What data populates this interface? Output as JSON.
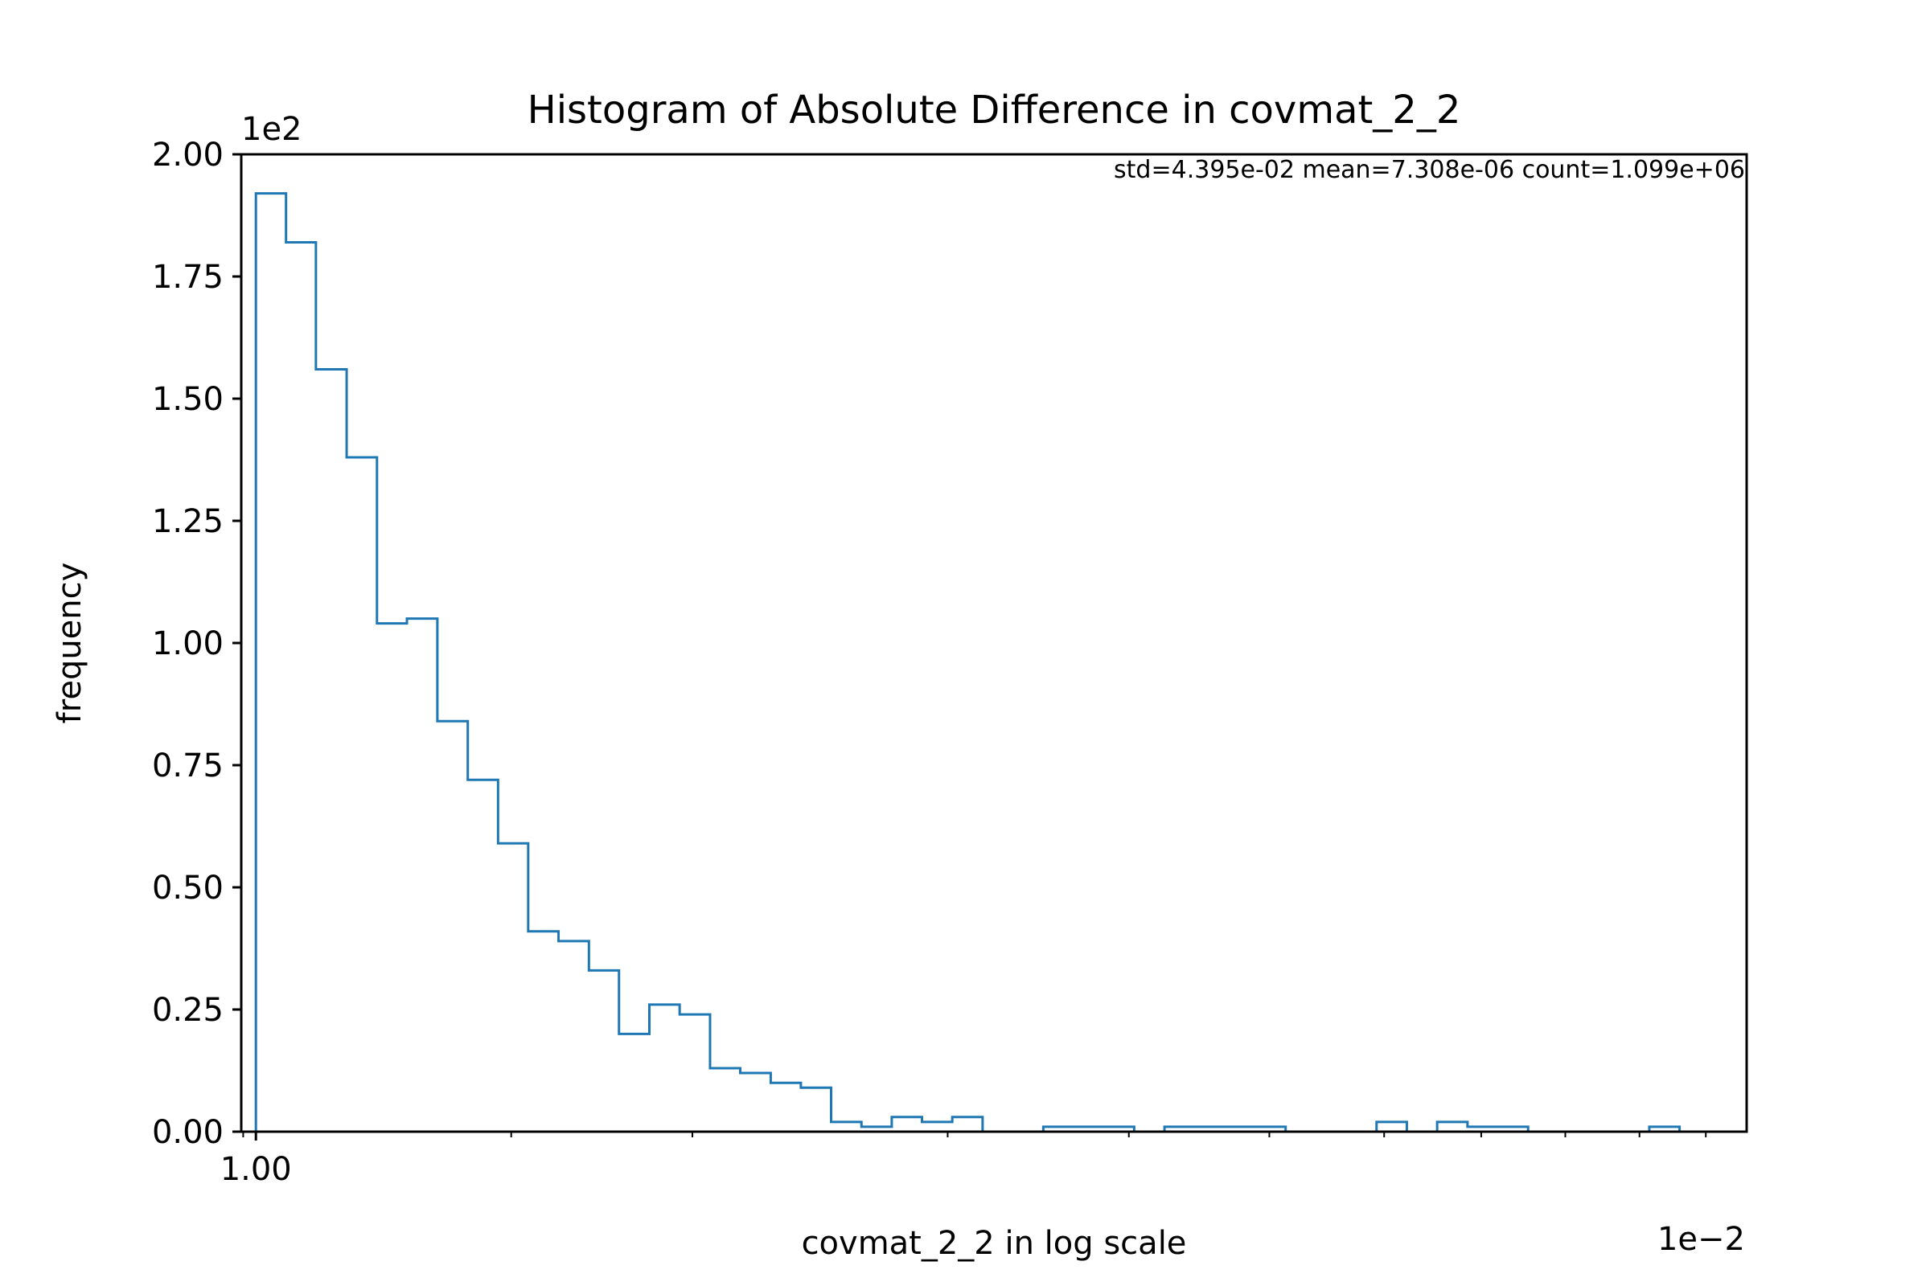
{
  "chart_data": {
    "type": "histogram",
    "title": "Histogram of Absolute Difference in covmat_2_2",
    "annotation": "std=4.395e-02 mean=7.308e-06 count=1.099e+06",
    "xlabel": "covmat_2_2 in log scale",
    "ylabel": "frequency",
    "x_scale": "log",
    "x_offset_label": "1e−2",
    "y_offset_label": "1e2",
    "x_tick_labels": [
      {
        "value": 1.0,
        "label": "1.00"
      }
    ],
    "x_minor_ticks": [
      0.98,
      1.5,
      2,
      3,
      4,
      5,
      6,
      7,
      8,
      9,
      10
    ],
    "y_tick_labels": [
      "0.00",
      "0.25",
      "0.50",
      "0.75",
      "1.00",
      "1.25",
      "1.50",
      "1.75",
      "2.00"
    ],
    "y_ticks": [
      0,
      0.25,
      0.5,
      0.75,
      1.0,
      1.25,
      1.5,
      1.75,
      2.0
    ],
    "xlim": [
      0.977,
      10.67
    ],
    "ylim": [
      0,
      2.0
    ],
    "bin_edges": [
      1.0,
      1.049,
      1.1,
      1.155,
      1.212,
      1.271,
      1.334,
      1.4,
      1.469,
      1.541,
      1.617,
      1.697,
      1.78,
      1.868,
      1.96,
      2.057,
      2.158,
      2.265,
      2.376,
      2.493,
      2.616,
      2.745,
      2.88,
      3.022,
      3.171,
      3.328,
      3.492,
      3.664,
      3.844,
      4.034,
      4.233,
      4.441,
      4.66,
      4.89,
      5.131,
      5.384,
      5.649,
      5.928,
      6.22,
      6.527,
      6.849,
      7.186,
      7.541,
      7.912,
      8.302,
      8.712,
      9.142,
      9.592,
      10.065
    ],
    "values": [
      1.92,
      1.82,
      1.56,
      1.38,
      1.04,
      1.05,
      0.84,
      0.72,
      0.59,
      0.41,
      0.39,
      0.33,
      0.2,
      0.26,
      0.24,
      0.13,
      0.12,
      0.1,
      0.09,
      0.02,
      0.01,
      0.03,
      0.02,
      0.03,
      0.0,
      0.0,
      0.01,
      0.01,
      0.01,
      0.0,
      0.01,
      0.01,
      0.01,
      0.01,
      0.0,
      0.0,
      0.0,
      0.02,
      0.0,
      0.02,
      0.01,
      0.01,
      0.0,
      0.0,
      0.0,
      0.0,
      0.01,
      0.0
    ],
    "line_color": "#1f77b4",
    "grid": false,
    "legend": "none"
  }
}
